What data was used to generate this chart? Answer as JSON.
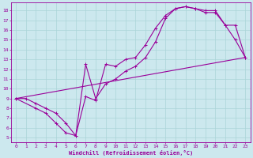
{
  "xlabel": "Windchill (Refroidissement éolien,°C)",
  "line_color": "#990099",
  "bg_color": "#cce8ee",
  "grid_color": "#aad4d8",
  "xlim": [
    -0.5,
    23.5
  ],
  "ylim": [
    4.5,
    18.8
  ],
  "xticks": [
    0,
    1,
    2,
    3,
    4,
    5,
    6,
    7,
    8,
    9,
    10,
    11,
    12,
    13,
    14,
    15,
    16,
    17,
    18,
    19,
    20,
    21,
    22,
    23
  ],
  "yticks": [
    5,
    6,
    7,
    8,
    9,
    10,
    11,
    12,
    13,
    14,
    15,
    16,
    17,
    18
  ],
  "line1_x": [
    0,
    1,
    2,
    3,
    4,
    5,
    6,
    7,
    8,
    9,
    10,
    11,
    12,
    13,
    14,
    15,
    16,
    17,
    18,
    19,
    20,
    21,
    22,
    23
  ],
  "line1_y": [
    9,
    9,
    8.5,
    8.0,
    7.5,
    6.5,
    5.2,
    9.2,
    8.8,
    12.5,
    12.3,
    13.0,
    13.2,
    14.5,
    16.2,
    17.5,
    18.2,
    18.4,
    18.2,
    18.0,
    18.0,
    16.5,
    16.5,
    13.2
  ],
  "line2_x": [
    0,
    2,
    3,
    4,
    5,
    6,
    7,
    8,
    9,
    10,
    11,
    12,
    13,
    14,
    15,
    16,
    17,
    18,
    19,
    20,
    21,
    22,
    23
  ],
  "line2_y": [
    9,
    8.0,
    7.5,
    6.5,
    5.5,
    5.2,
    12.5,
    9.0,
    10.5,
    11.0,
    11.8,
    12.3,
    13.2,
    14.8,
    17.2,
    18.2,
    18.4,
    18.2,
    17.8,
    17.8,
    16.5,
    15.0,
    13.2
  ],
  "line3_x": [
    0,
    23
  ],
  "line3_y": [
    9.0,
    13.2
  ]
}
